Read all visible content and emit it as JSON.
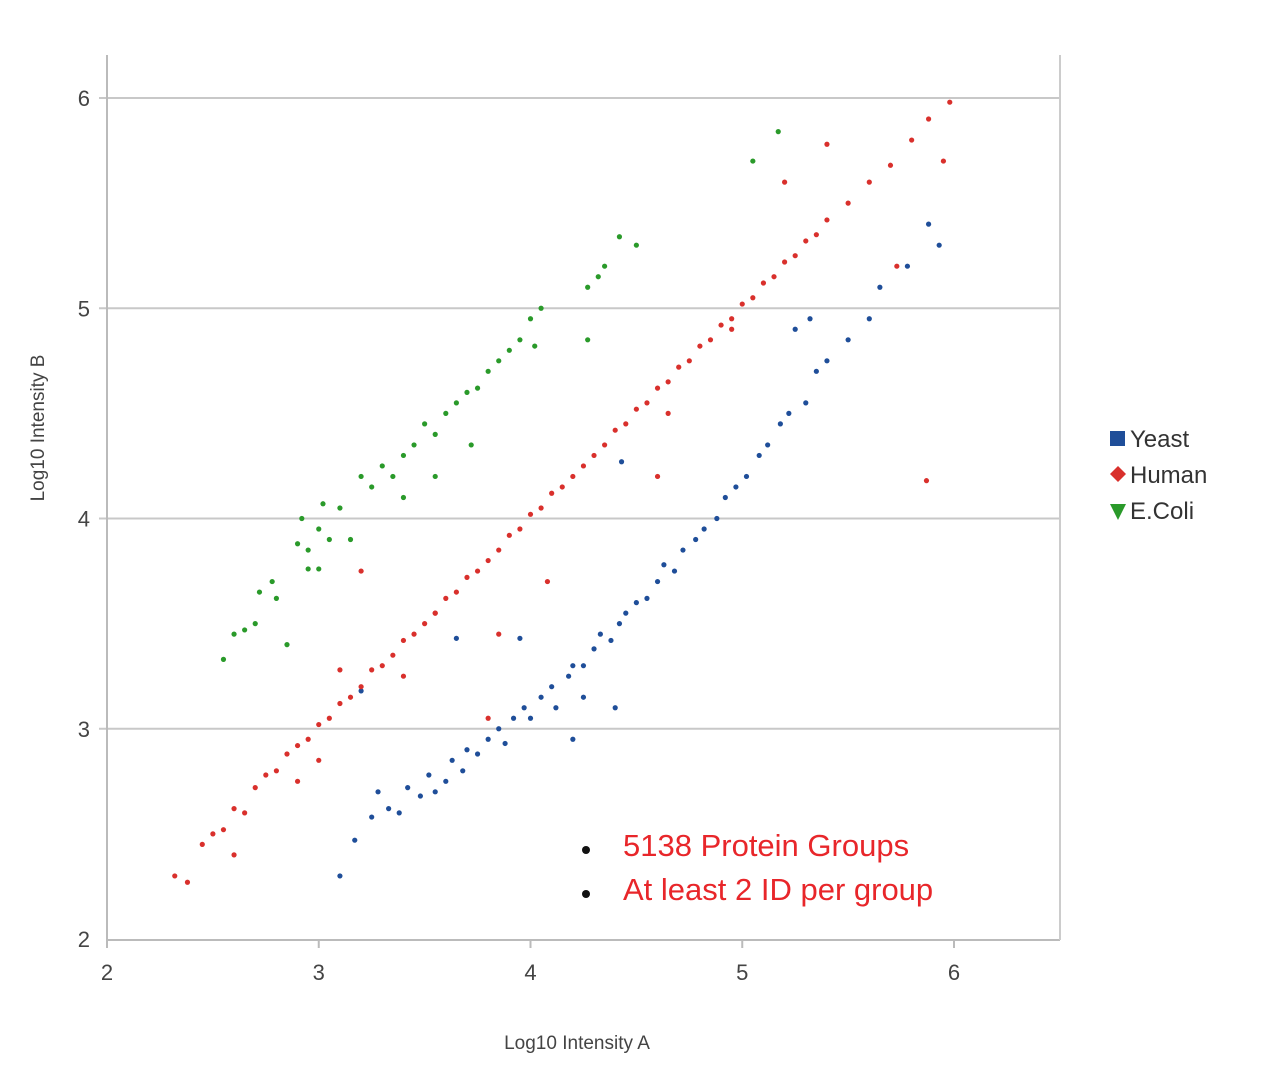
{
  "chart_data": {
    "type": "scatter",
    "title": "",
    "xlabel": "Log10 Intensity A",
    "ylabel": "Log10 Intensity B",
    "xlim": [
      2,
      6.5
    ],
    "ylim": [
      2,
      6.2
    ],
    "xticks": [
      "2",
      "3",
      "4",
      "5",
      "6"
    ],
    "yticks": [
      "2",
      "3",
      "4",
      "5",
      "6"
    ],
    "grid": "horizontal",
    "legend_position": "right",
    "annotations": [
      "5138 Protein Groups",
      "At least 2 ID per group"
    ],
    "series": [
      {
        "name": "Yeast",
        "color": "#1f4e99",
        "marker": "square",
        "points": [
          [
            3.1,
            2.3
          ],
          [
            3.17,
            2.47
          ],
          [
            3.25,
            2.58
          ],
          [
            3.28,
            2.7
          ],
          [
            3.33,
            2.62
          ],
          [
            3.38,
            2.6
          ],
          [
            3.42,
            2.72
          ],
          [
            3.48,
            2.68
          ],
          [
            3.52,
            2.78
          ],
          [
            3.55,
            2.7
          ],
          [
            3.6,
            2.75
          ],
          [
            3.63,
            2.85
          ],
          [
            3.68,
            2.8
          ],
          [
            3.7,
            2.9
          ],
          [
            3.75,
            2.88
          ],
          [
            3.8,
            2.95
          ],
          [
            3.85,
            3.0
          ],
          [
            3.88,
            2.93
          ],
          [
            3.92,
            3.05
          ],
          [
            3.97,
            3.1
          ],
          [
            4.0,
            3.05
          ],
          [
            4.05,
            3.15
          ],
          [
            4.1,
            3.2
          ],
          [
            4.12,
            3.1
          ],
          [
            4.18,
            3.25
          ],
          [
            4.2,
            3.3
          ],
          [
            4.25,
            3.3
          ],
          [
            4.3,
            3.38
          ],
          [
            4.33,
            3.45
          ],
          [
            4.38,
            3.42
          ],
          [
            4.42,
            3.5
          ],
          [
            4.45,
            3.55
          ],
          [
            4.5,
            3.6
          ],
          [
            4.55,
            3.62
          ],
          [
            4.6,
            3.7
          ],
          [
            4.63,
            3.78
          ],
          [
            4.68,
            3.75
          ],
          [
            4.72,
            3.85
          ],
          [
            4.78,
            3.9
          ],
          [
            4.82,
            3.95
          ],
          [
            4.88,
            4.0
          ],
          [
            4.92,
            4.1
          ],
          [
            4.97,
            4.15
          ],
          [
            5.02,
            4.2
          ],
          [
            5.08,
            4.3
          ],
          [
            5.12,
            4.35
          ],
          [
            5.18,
            4.45
          ],
          [
            5.22,
            4.5
          ],
          [
            5.3,
            4.55
          ],
          [
            5.35,
            4.7
          ],
          [
            5.4,
            4.75
          ],
          [
            5.5,
            4.85
          ],
          [
            5.6,
            4.95
          ],
          [
            5.65,
            5.1
          ],
          [
            5.78,
            5.2
          ],
          [
            5.88,
            5.4
          ],
          [
            5.93,
            5.3
          ],
          [
            4.43,
            4.27
          ],
          [
            4.2,
            2.95
          ],
          [
            3.2,
            3.18
          ],
          [
            3.65,
            3.43
          ],
          [
            3.95,
            3.43
          ],
          [
            4.4,
            3.1
          ],
          [
            4.25,
            3.15
          ],
          [
            5.32,
            4.95
          ],
          [
            5.25,
            4.9
          ]
        ]
      },
      {
        "name": "Human",
        "color": "#d9302c",
        "marker": "diamond",
        "points": [
          [
            2.32,
            2.3
          ],
          [
            2.38,
            2.27
          ],
          [
            2.45,
            2.45
          ],
          [
            2.5,
            2.5
          ],
          [
            2.55,
            2.52
          ],
          [
            2.6,
            2.62
          ],
          [
            2.65,
            2.6
          ],
          [
            2.7,
            2.72
          ],
          [
            2.75,
            2.78
          ],
          [
            2.8,
            2.8
          ],
          [
            2.85,
            2.88
          ],
          [
            2.9,
            2.92
          ],
          [
            2.95,
            2.95
          ],
          [
            3.0,
            3.02
          ],
          [
            3.05,
            3.05
          ],
          [
            3.1,
            3.12
          ],
          [
            3.15,
            3.15
          ],
          [
            3.2,
            3.2
          ],
          [
            3.25,
            3.28
          ],
          [
            3.3,
            3.3
          ],
          [
            3.35,
            3.35
          ],
          [
            3.4,
            3.42
          ],
          [
            3.45,
            3.45
          ],
          [
            3.5,
            3.5
          ],
          [
            3.55,
            3.55
          ],
          [
            3.6,
            3.62
          ],
          [
            3.65,
            3.65
          ],
          [
            3.7,
            3.72
          ],
          [
            3.75,
            3.75
          ],
          [
            3.8,
            3.8
          ],
          [
            3.85,
            3.85
          ],
          [
            3.9,
            3.92
          ],
          [
            3.95,
            3.95
          ],
          [
            4.0,
            4.02
          ],
          [
            4.05,
            4.05
          ],
          [
            4.1,
            4.12
          ],
          [
            4.15,
            4.15
          ],
          [
            4.2,
            4.2
          ],
          [
            4.25,
            4.25
          ],
          [
            4.3,
            4.3
          ],
          [
            4.35,
            4.35
          ],
          [
            4.4,
            4.42
          ],
          [
            4.45,
            4.45
          ],
          [
            4.5,
            4.52
          ],
          [
            4.55,
            4.55
          ],
          [
            4.6,
            4.62
          ],
          [
            4.65,
            4.65
          ],
          [
            4.7,
            4.72
          ],
          [
            4.75,
            4.75
          ],
          [
            4.8,
            4.82
          ],
          [
            4.85,
            4.85
          ],
          [
            4.9,
            4.92
          ],
          [
            4.95,
            4.95
          ],
          [
            5.0,
            5.02
          ],
          [
            5.05,
            5.05
          ],
          [
            5.1,
            5.12
          ],
          [
            5.15,
            5.15
          ],
          [
            5.2,
            5.22
          ],
          [
            5.25,
            5.25
          ],
          [
            5.3,
            5.32
          ],
          [
            5.35,
            5.35
          ],
          [
            5.4,
            5.42
          ],
          [
            5.5,
            5.5
          ],
          [
            5.6,
            5.6
          ],
          [
            5.7,
            5.68
          ],
          [
            5.8,
            5.8
          ],
          [
            5.88,
            5.9
          ],
          [
            5.98,
            5.98
          ],
          [
            5.4,
            5.78
          ],
          [
            5.95,
            5.7
          ],
          [
            5.87,
            4.18
          ],
          [
            5.2,
            5.6
          ],
          [
            5.73,
            5.2
          ],
          [
            4.65,
            4.5
          ],
          [
            4.95,
            4.9
          ],
          [
            3.55,
            3.55
          ],
          [
            3.2,
            3.75
          ],
          [
            3.85,
            3.45
          ],
          [
            3.8,
            3.05
          ],
          [
            4.08,
            3.7
          ],
          [
            4.6,
            4.2
          ],
          [
            3.0,
            2.85
          ],
          [
            2.6,
            2.4
          ],
          [
            2.9,
            2.75
          ],
          [
            3.1,
            3.28
          ],
          [
            3.4,
            3.25
          ]
        ]
      },
      {
        "name": "E.Coli",
        "color": "#2a9a2a",
        "marker": "triangle-down",
        "points": [
          [
            2.55,
            3.33
          ],
          [
            2.6,
            3.45
          ],
          [
            2.65,
            3.47
          ],
          [
            2.7,
            3.5
          ],
          [
            2.72,
            3.65
          ],
          [
            2.78,
            3.7
          ],
          [
            2.8,
            3.62
          ],
          [
            2.85,
            3.4
          ],
          [
            2.9,
            3.88
          ],
          [
            2.92,
            4.0
          ],
          [
            2.95,
            3.85
          ],
          [
            3.0,
            3.95
          ],
          [
            3.05,
            3.9
          ],
          [
            3.02,
            4.07
          ],
          [
            2.95,
            3.76
          ],
          [
            3.0,
            3.76
          ],
          [
            3.1,
            4.05
          ],
          [
            3.2,
            4.2
          ],
          [
            3.25,
            4.15
          ],
          [
            3.3,
            4.25
          ],
          [
            3.35,
            4.2
          ],
          [
            3.4,
            4.3
          ],
          [
            3.45,
            4.35
          ],
          [
            3.5,
            4.45
          ],
          [
            3.55,
            4.4
          ],
          [
            3.6,
            4.5
          ],
          [
            3.65,
            4.55
          ],
          [
            3.7,
            4.6
          ],
          [
            3.75,
            4.62
          ],
          [
            3.8,
            4.7
          ],
          [
            3.85,
            4.75
          ],
          [
            3.9,
            4.8
          ],
          [
            3.95,
            4.85
          ],
          [
            4.0,
            4.95
          ],
          [
            4.05,
            5.0
          ],
          [
            4.02,
            4.82
          ],
          [
            4.27,
            4.85
          ],
          [
            4.27,
            5.1
          ],
          [
            4.32,
            5.15
          ],
          [
            4.35,
            5.2
          ],
          [
            4.42,
            5.34
          ],
          [
            4.5,
            5.3
          ],
          [
            5.05,
            5.7
          ],
          [
            5.17,
            5.84
          ],
          [
            3.55,
            4.2
          ],
          [
            3.72,
            4.35
          ],
          [
            3.15,
            3.9
          ],
          [
            3.4,
            4.1
          ]
        ]
      }
    ]
  }
}
